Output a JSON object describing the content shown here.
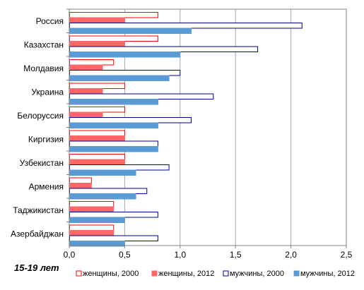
{
  "chart_data": {
    "type": "bar",
    "orientation": "horizontal",
    "categories": [
      "Россия",
      "Казахстан",
      "Молдавия",
      "Украина",
      "Белоруссия",
      "Киргизия",
      "Узбекистан",
      "Армения",
      "Таджикистан",
      "Азербайджан"
    ],
    "series": [
      {
        "name": "женщины, 2000",
        "color": "#ff0000",
        "filled": false,
        "values": [
          0.8,
          0.8,
          0.4,
          0.5,
          0.5,
          0.5,
          0.5,
          0.2,
          0.4,
          0.4
        ]
      },
      {
        "name": "женщины, 2012",
        "color": "#ff6666",
        "filled": true,
        "values": [
          0.5,
          0.5,
          0.3,
          0.3,
          0.3,
          0.5,
          0.5,
          0.2,
          0.4,
          0.4
        ]
      },
      {
        "name": "мужчины, 2000",
        "color": "#00008b",
        "filled": false,
        "values": [
          2.1,
          1.7,
          1.0,
          1.3,
          1.1,
          0.8,
          0.9,
          0.7,
          0.8,
          0.8
        ]
      },
      {
        "name": "мужчины, 2012",
        "color": "#5b9bd5",
        "filled": true,
        "values": [
          1.1,
          1.0,
          0.9,
          0.8,
          0.8,
          0.8,
          0.6,
          0.6,
          0.5,
          0.5
        ]
      }
    ],
    "xlim": [
      0,
      2.5
    ],
    "xticks": [
      "0,0",
      "0,5",
      "1,0",
      "1,5",
      "2,0",
      "2,5"
    ],
    "grid": "vertical",
    "legend_position": "bottom",
    "corner_label": "15-19 лет"
  }
}
